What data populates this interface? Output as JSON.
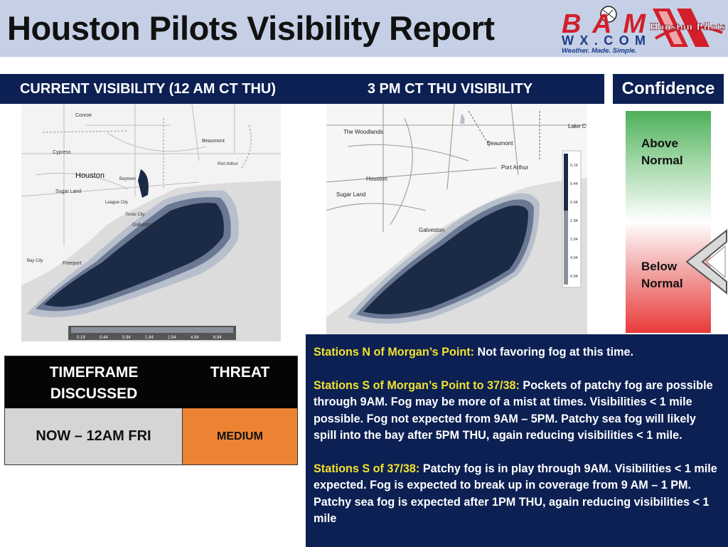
{
  "header": {
    "title": "Houston Pilots Visibility Report",
    "bam_logo": {
      "top": "BAM",
      "bottom": "WX.COM",
      "tagline": "Weather. Made. Simple."
    },
    "pilots_logo": {
      "text": "Houston Pilots"
    }
  },
  "current_panel": {
    "heading": "CURRENT VISIBILITY (12 AM CT THU)",
    "map_labels": [
      "Conroe",
      "Cypress",
      "Houston",
      "Baytown",
      "Beaumont",
      "Port Arthur",
      "Sugar Land",
      "League City",
      "Texas City",
      "Galveston",
      "Bay City",
      "Freeport"
    ],
    "legend": [
      "0.19",
      "0.44",
      "0.94",
      "1.94",
      "2.94",
      "4.94",
      "6.94"
    ]
  },
  "forecast_panel": {
    "heading": "3 PM CT THU VISIBILITY",
    "map_labels": [
      "The Woodlands",
      "Beaumont",
      "Lake C",
      "Port Arthur",
      "Houston",
      "Sugar Land",
      "Galveston"
    ],
    "legend": [
      "0.19",
      "0.44",
      "0.94",
      "1.94",
      "2.94",
      "4.94",
      "6.94"
    ]
  },
  "confidence": {
    "heading": "Confidence",
    "above": "Above Normal",
    "below": "Below Normal",
    "level": "Below Normal"
  },
  "threat_table": {
    "col1_header": "TIMEFRAME DISCUSSED",
    "col2_header": "THREAT",
    "timeframe": "NOW – 12AM FRI",
    "threat": "MEDIUM",
    "threat_color": "#ec8332"
  },
  "discussion": [
    {
      "station": "Stations N of Morgan’s Point:",
      "text": " Not favoring fog at this time."
    },
    {
      "station": "Stations S of Morgan’s Point to 37/38:",
      "text": " Pockets of patchy fog are possible through 9AM. Fog may be more of a mist at times. Visibilities < 1 mile possible. Fog not expected from 9AM – 5PM. Patchy sea fog will likely spill into the bay after 5PM THU, again reducing visibilities < 1 mile."
    },
    {
      "station": "Stations S of 37/38:",
      "text": " Patchy fog is in play through 9AM. Visibilities < 1 mile expected. Fog is expected to break up in coverage from 9 AM – 1 PM. Patchy sea fog is expected after 1PM THU, again reducing visibilities < 1 mile"
    }
  ],
  "colors": {
    "navy": "#0c2053",
    "header_bg": "#c5d0e6",
    "station_yellow": "#f0e12e",
    "fog_dark": "#1b2a45"
  }
}
